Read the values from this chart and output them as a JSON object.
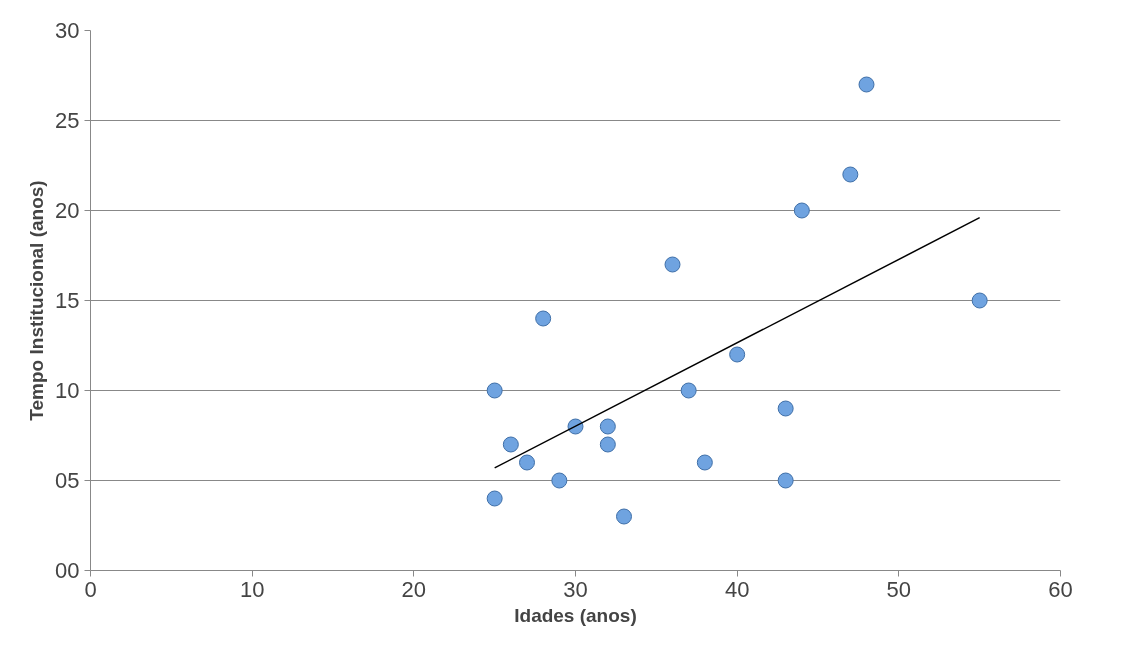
{
  "chart_data": {
    "type": "scatter",
    "xlabel": "Idades (anos)",
    "ylabel": "Tempo Institucional (anos)",
    "xlim": [
      0,
      60
    ],
    "xticks": [
      0,
      10,
      20,
      30,
      40,
      50,
      60
    ],
    "ylim": [
      0,
      30
    ],
    "yticks": [
      {
        "value": 0,
        "label": "00"
      },
      {
        "value": 5,
        "label": "05"
      },
      10,
      15,
      20,
      25,
      30
    ],
    "grid": "y",
    "marker": "circle",
    "series": [
      {
        "color": "#6fa3e0",
        "x": [
          25,
          25,
          26,
          27,
          28,
          29,
          30,
          32,
          32,
          33,
          36,
          37,
          38,
          40,
          43,
          43,
          44,
          47,
          48,
          55
        ],
        "values": [
          10,
          4,
          7,
          6,
          14,
          5,
          8,
          8,
          7,
          3,
          17,
          10,
          6,
          12,
          9,
          5,
          20,
          22,
          27,
          15
        ]
      },
      {
        "type": "line",
        "color": "#000000",
        "marker": "none",
        "x": [
          25,
          55
        ],
        "values": [
          5.7,
          19.6
        ]
      }
    ]
  }
}
